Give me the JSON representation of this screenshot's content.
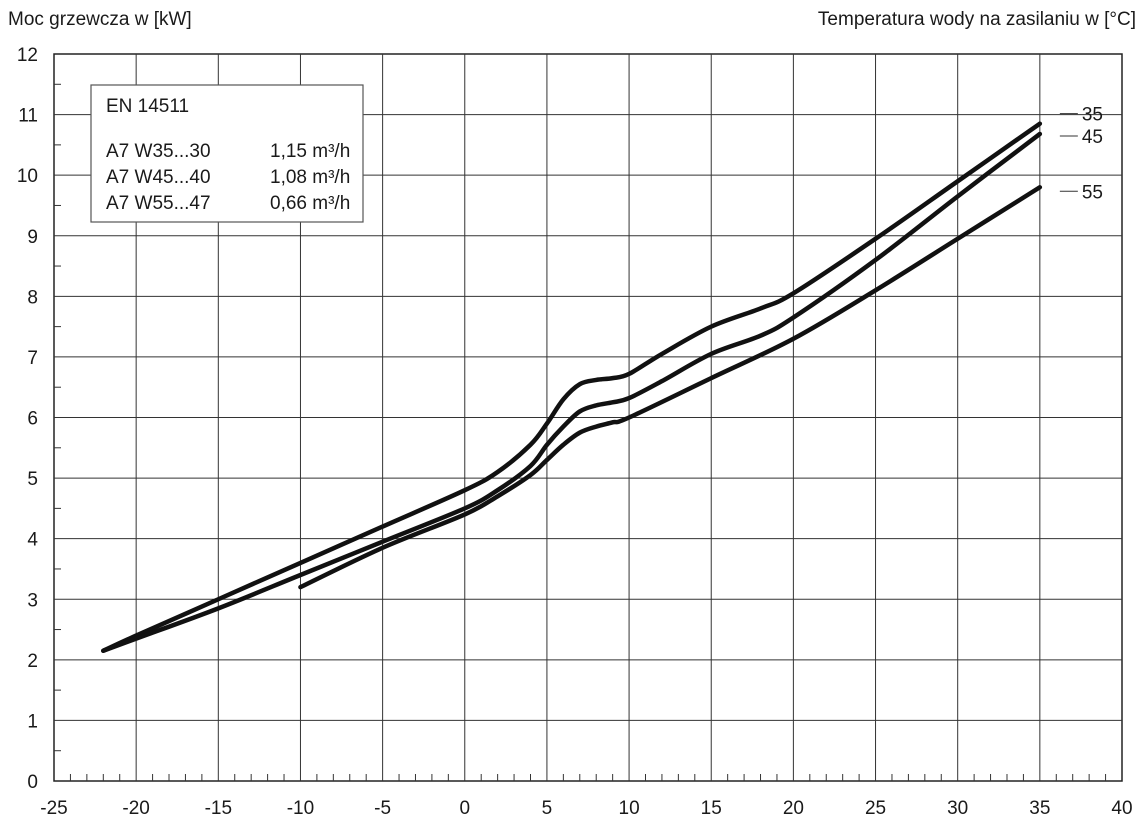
{
  "chart_data": {
    "type": "line",
    "ylabel": "Moc grzewcza w [kW]",
    "series_title": "Temperatura wody na zasilaniu w [°C]",
    "xlim": [
      -25,
      40
    ],
    "ylim": [
      0,
      12
    ],
    "x_ticks": [
      "-25",
      "-20",
      "-15",
      "-10",
      "-5",
      "0",
      "5",
      "10",
      "15",
      "20",
      "25",
      "30",
      "35",
      "40"
    ],
    "y_ticks": [
      "0",
      "1",
      "2",
      "3",
      "4",
      "5",
      "6",
      "7",
      "8",
      "9",
      "10",
      "11",
      "12"
    ],
    "grid": true,
    "legend": {
      "placement": "top-left",
      "title": "EN 14511",
      "rows": [
        {
          "condition": "A7 W35...30",
          "flow": "1,15 m³/h"
        },
        {
          "condition": "A7 W45...40",
          "flow": "1,08 m³/h"
        },
        {
          "condition": "A7 W55...47",
          "flow": "0,66 m³/h"
        }
      ]
    },
    "series": [
      {
        "name": "35",
        "x": [
          -22,
          -20,
          -15,
          -10,
          -5,
          0,
          2,
          4,
          5,
          6,
          7,
          8,
          9,
          10,
          12,
          15,
          18,
          20,
          25,
          30,
          35
        ],
        "y": [
          2.15,
          2.4,
          3.0,
          3.6,
          4.2,
          4.8,
          5.1,
          5.55,
          5.9,
          6.3,
          6.55,
          6.62,
          6.65,
          6.72,
          7.05,
          7.5,
          7.8,
          8.05,
          8.95,
          9.9,
          10.85
        ]
      },
      {
        "name": "45",
        "x": [
          -22,
          -20,
          -15,
          -10,
          -5,
          0,
          2,
          4,
          5,
          6,
          7,
          8,
          9,
          10,
          12,
          15,
          18,
          20,
          25,
          30,
          35
        ],
        "y": [
          2.15,
          2.35,
          2.85,
          3.4,
          3.95,
          4.5,
          4.8,
          5.2,
          5.55,
          5.85,
          6.1,
          6.2,
          6.25,
          6.32,
          6.6,
          7.05,
          7.35,
          7.65,
          8.6,
          9.65,
          10.68
        ]
      },
      {
        "name": "55",
        "x": [
          -10,
          -5,
          0,
          2,
          4,
          5,
          6,
          7,
          8,
          9,
          10,
          15,
          20,
          25,
          30,
          35
        ],
        "y": [
          3.2,
          3.85,
          4.4,
          4.7,
          5.05,
          5.3,
          5.55,
          5.75,
          5.85,
          5.92,
          6.0,
          6.65,
          7.3,
          8.1,
          8.95,
          9.8
        ]
      }
    ]
  }
}
